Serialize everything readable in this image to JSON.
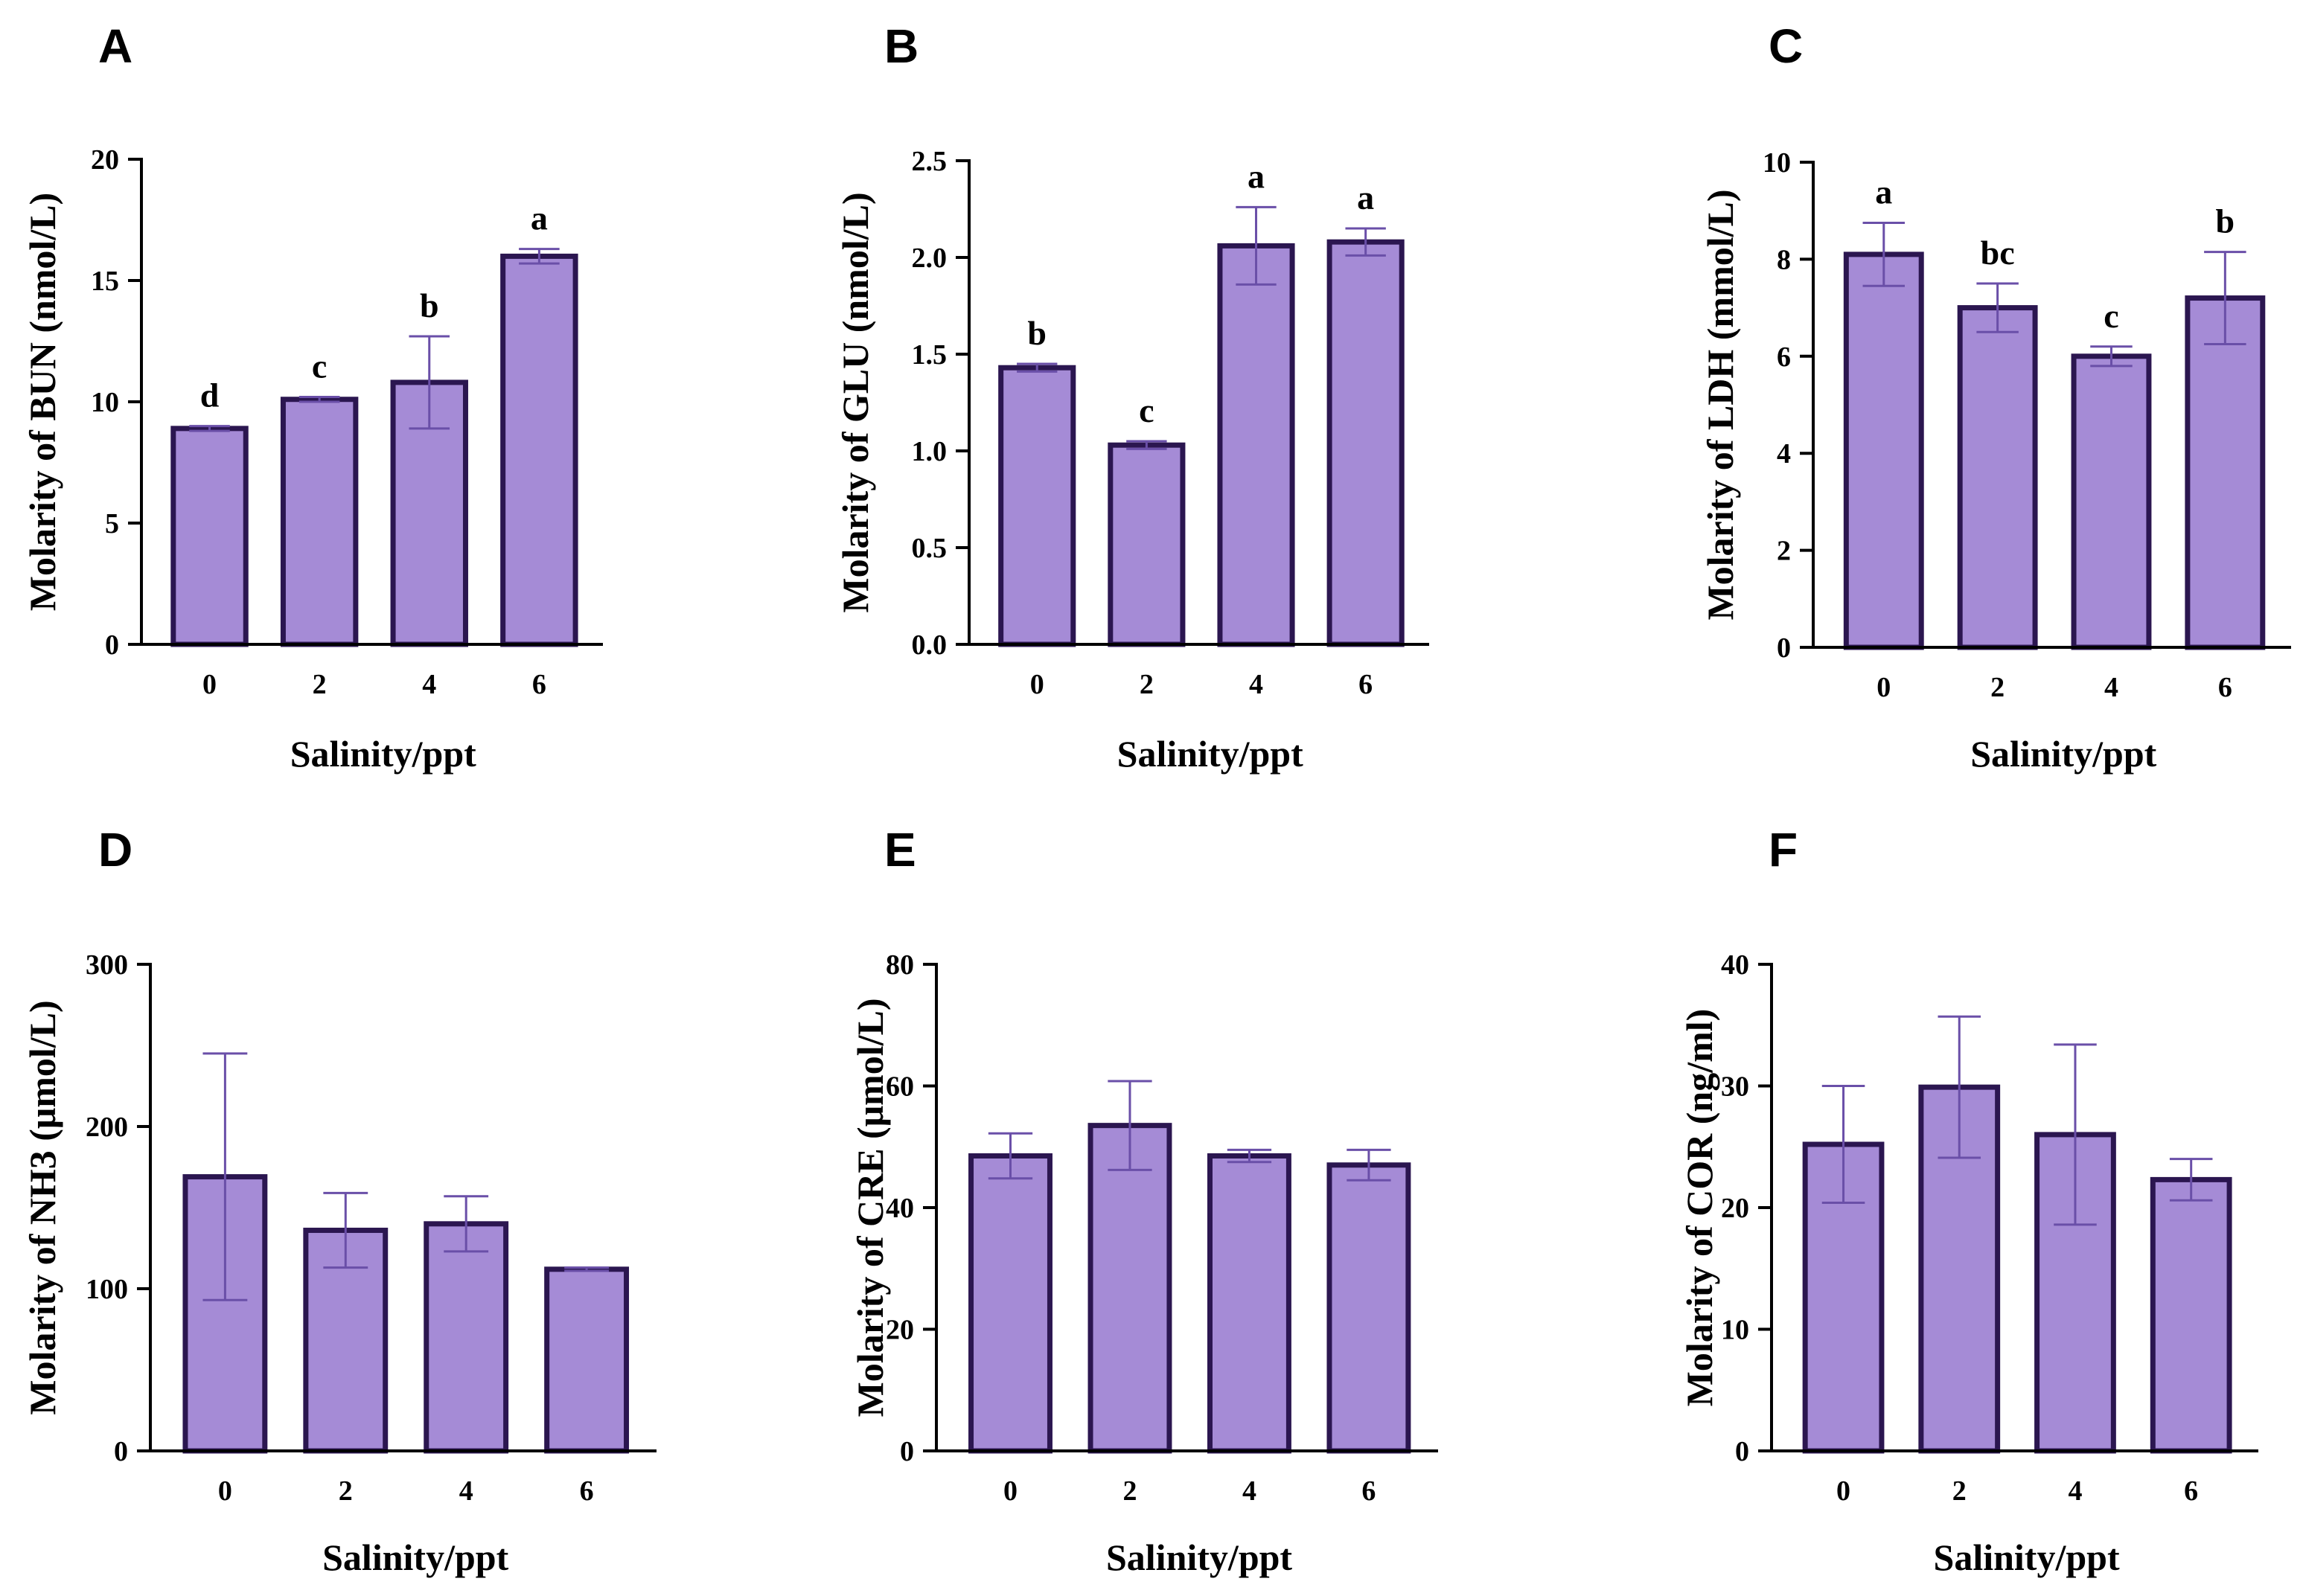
{
  "colors": {
    "bar_fill": "#a58bd6",
    "bar_stroke": "#2b1650",
    "error_bar": "#6a4fa8"
  },
  "chart_data": [
    {
      "panel": "A",
      "type": "bar",
      "categories": [
        "0",
        "2",
        "4",
        "6"
      ],
      "values": [
        8.9,
        10.1,
        10.8,
        16.0
      ],
      "errors": [
        0.1,
        0.1,
        1.9,
        0.3
      ],
      "sig_letters": [
        "d",
        "c",
        "b",
        "a"
      ],
      "xlabel": "Salinity/ppt",
      "ylabel": "Molarity of BUN (nmol/L)",
      "ylim": [
        0,
        20
      ],
      "yticks": [
        0,
        5,
        10,
        15,
        20
      ],
      "ytick_labels": [
        "0",
        "5",
        "10",
        "15",
        "20"
      ]
    },
    {
      "panel": "B",
      "type": "bar",
      "categories": [
        "0",
        "2",
        "4",
        "6"
      ],
      "values": [
        1.43,
        1.03,
        2.06,
        2.08
      ],
      "errors": [
        0.02,
        0.02,
        0.2,
        0.07
      ],
      "sig_letters": [
        "b",
        "c",
        "a",
        "a"
      ],
      "xlabel": "Salinity/ppt",
      "ylabel": "Molarity of GLU (nmol/L)",
      "ylim": [
        0,
        2.5
      ],
      "yticks": [
        0,
        0.5,
        1.0,
        1.5,
        2.0,
        2.5
      ],
      "ytick_labels": [
        "0.0",
        "0.5",
        "1.0",
        "1.5",
        "2.0",
        "2.5"
      ]
    },
    {
      "panel": "C",
      "type": "bar",
      "categories": [
        "0",
        "2",
        "4",
        "6"
      ],
      "values": [
        8.1,
        7.0,
        6.0,
        7.2
      ],
      "errors": [
        0.65,
        0.5,
        0.2,
        0.95
      ],
      "sig_letters": [
        "a",
        "bc",
        "c",
        "b"
      ],
      "xlabel": "Salinity/ppt",
      "ylabel": "Molarity of LDH (mmol/L)",
      "ylim": [
        0,
        10
      ],
      "yticks": [
        0,
        2,
        4,
        6,
        8,
        10
      ],
      "ytick_labels": [
        "0",
        "2",
        "4",
        "6",
        "8",
        "10"
      ]
    },
    {
      "panel": "D",
      "type": "bar",
      "categories": [
        "0",
        "2",
        "4",
        "6"
      ],
      "values": [
        169,
        136,
        140,
        112
      ],
      "errors": [
        76,
        23,
        17,
        1
      ],
      "sig_letters": [
        "",
        "",
        "",
        ""
      ],
      "xlabel": "Salinity/ppt",
      "ylabel": "Molarity of NH3 (μmol/L)",
      "ylim": [
        0,
        300
      ],
      "yticks": [
        0,
        100,
        200,
        300
      ],
      "ytick_labels": [
        "0",
        "100",
        "200",
        "300"
      ]
    },
    {
      "panel": "E",
      "type": "bar",
      "categories": [
        "0",
        "2",
        "4",
        "6"
      ],
      "values": [
        48.5,
        53.5,
        48.5,
        47
      ],
      "errors": [
        3.7,
        7.3,
        1,
        2.5
      ],
      "sig_letters": [
        "",
        "",
        "",
        ""
      ],
      "xlabel": "Salinity/ppt",
      "ylabel": "Molarity of CRE (μmol/L)",
      "ylim": [
        0,
        80
      ],
      "yticks": [
        0,
        20,
        40,
        60,
        80
      ],
      "ytick_labels": [
        "0",
        "20",
        "40",
        "60",
        "80"
      ]
    },
    {
      "panel": "F",
      "type": "bar",
      "categories": [
        "0",
        "2",
        "4",
        "6"
      ],
      "values": [
        25.2,
        29.9,
        26.0,
        22.3
      ],
      "errors": [
        4.8,
        5.8,
        7.4,
        1.7
      ],
      "sig_letters": [
        "",
        "",
        "",
        ""
      ],
      "xlabel": "Salinity/ppt",
      "ylabel": "Molarity of COR (ng/ml)",
      "ylim": [
        0,
        40
      ],
      "yticks": [
        0,
        10,
        20,
        30,
        40
      ],
      "ytick_labels": [
        "0",
        "10",
        "20",
        "30",
        "40"
      ]
    }
  ]
}
